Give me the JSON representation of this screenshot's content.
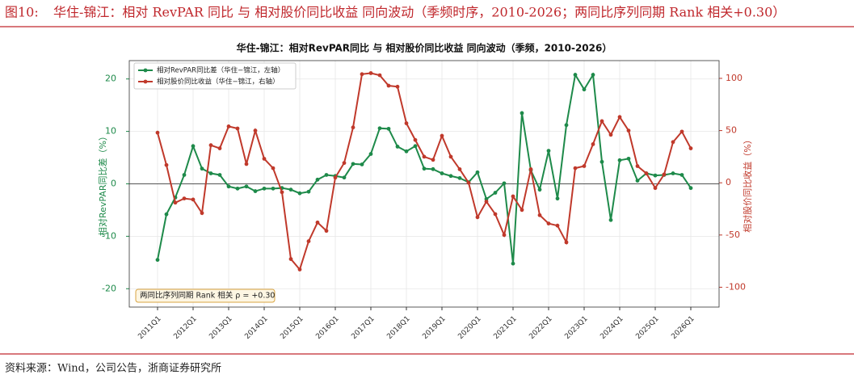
{
  "header": {
    "figure_label": "图10:",
    "title": "华住-锦江：相对 RevPAR 同比 与 相对股价同比收益 同向波动（季频时序，2010-2026；两同比序列同期 Rank 相关+0.30）"
  },
  "source": "资料来源：Wind，公司公告，浙商证券研究所",
  "chart_data": {
    "type": "line",
    "title": "华住-锦江：相对RevPAR同比 与 相对股价同比收益 同向波动（季频，2010-2026）",
    "ylabel": "相对RevPAR同比差（%）",
    "y2label": "相对股价同比收益（%）",
    "annotation": "两同比序列同期 Rank 相关 ρ = +0.30",
    "grid": true,
    "legend": "upper left",
    "categories": [
      "2011Q1",
      null,
      null,
      null,
      "2012Q1",
      null,
      null,
      null,
      "2013Q1",
      null,
      null,
      null,
      "2014Q1",
      null,
      null,
      null,
      "2015Q1",
      null,
      null,
      null,
      "2016Q1",
      null,
      null,
      null,
      "2017Q1",
      null,
      null,
      null,
      "2018Q1",
      null,
      null,
      null,
      "2019Q1",
      null,
      null,
      null,
      "2020Q1",
      null,
      null,
      null,
      "2021Q1",
      null,
      null,
      null,
      "2022Q1",
      null,
      null,
      null,
      "2023Q1",
      null,
      null,
      null,
      "2024Q1",
      null,
      null,
      null,
      "2025Q1",
      null,
      null,
      null,
      "2026Q1"
    ],
    "ylim": [
      -23.5,
      23.5
    ],
    "yticks": [
      -20,
      -10,
      0,
      10,
      20
    ],
    "y2lim": [
      -119,
      117
    ],
    "y2ticks": [
      -100,
      -50,
      0,
      50,
      100
    ],
    "series": [
      {
        "name": "相对RevPAR同比差（华住−锦江，左轴）",
        "color": "#1e8a4a",
        "axis": "y",
        "values": [
          -14.5,
          -5.8,
          -2.6,
          1.7,
          7.2,
          2.9,
          2.0,
          1.7,
          -0.5,
          -0.9,
          -0.5,
          -1.4,
          -0.9,
          -0.9,
          -0.8,
          -1.1,
          -1.8,
          -1.5,
          0.8,
          1.7,
          1.5,
          1.2,
          3.8,
          3.7,
          5.7,
          10.6,
          10.5,
          7.1,
          6.2,
          7.2,
          2.9,
          2.8,
          2.0,
          1.5,
          1.1,
          0.3,
          2.2,
          -2.9,
          -1.7,
          0.1,
          -15.2,
          13.5,
          2.6,
          -1.1,
          6.3,
          -2.8,
          11.2,
          20.8,
          18.0,
          20.8,
          4.2,
          -6.9,
          4.5,
          4.8,
          0.6,
          2.0,
          1.6,
          1.7,
          2.0,
          1.7,
          -0.8
        ]
      },
      {
        "name": "相对股价同比收益（华住−锦江，右轴）",
        "color": "#c0392b",
        "axis": "y2",
        "values": [
          48,
          17,
          -19,
          -15,
          -16,
          -29,
          36,
          33,
          54,
          52,
          18,
          50,
          23,
          14,
          -9,
          -73,
          -83,
          -56,
          -38,
          -46,
          5,
          19,
          53,
          104,
          105,
          103,
          93,
          92,
          57,
          41,
          25,
          22,
          45,
          25,
          13,
          0,
          -33,
          -18,
          -30,
          -50,
          -13,
          -26,
          13,
          -31,
          -39,
          -41,
          -57,
          14,
          16,
          37,
          59,
          46,
          63,
          50,
          16,
          9,
          -5,
          8,
          39,
          49,
          33
        ]
      }
    ]
  }
}
